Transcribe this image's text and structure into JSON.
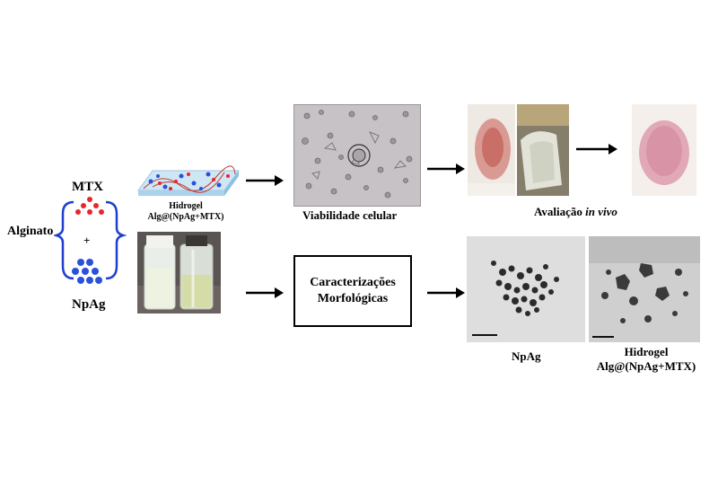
{
  "left": {
    "alginato": "Alginato",
    "mtx": "MTX",
    "plus": "+",
    "npag": "NpAg"
  },
  "hydrogel": {
    "line1": "Hidrogel",
    "line2": "Alg@(NpAg+MTX)"
  },
  "top_row": {
    "viability_label": "Viabilidade celular",
    "invivo_prefix": "Avaliação ",
    "invivo_italic": "in vivo"
  },
  "bottom_row": {
    "box_line1": "Caracterizações",
    "box_line2": "Morfológicas",
    "tem_left_label": "NpAg",
    "tem_right_line1": "Hidrogel",
    "tem_right_line2": "Alg@(NpAg+MTX)"
  },
  "colors": {
    "mtx_dots": "#e8262a",
    "npag_dots": "#2a52d8",
    "brace": "#1f3fd0"
  }
}
